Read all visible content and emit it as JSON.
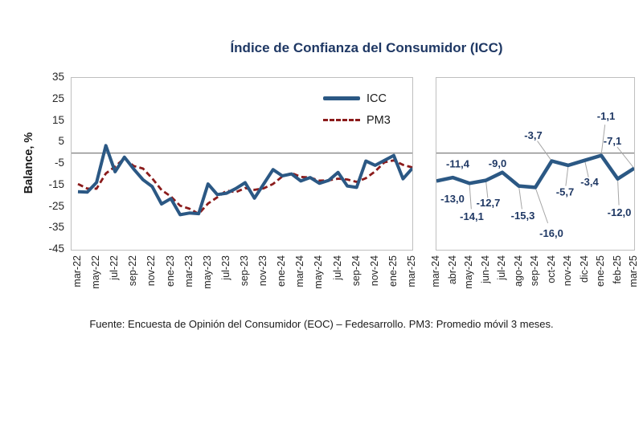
{
  "title": "Índice de Confianza del Consumidor (ICC)",
  "source_note": "Fuente: Encuesta de Opinión del Consumidor (EOC) – Fedesarrollo. PM3: Promedio móvil 3 meses.",
  "legend": {
    "icc_label": "ICC",
    "pm3_label": "PM3"
  },
  "y_axis": {
    "title": "Balance, %",
    "tick_labels": [
      "35",
      "25",
      "15",
      "5",
      "-5",
      "-15",
      "-25",
      "-35",
      "-45"
    ],
    "min": -45,
    "max": 35
  },
  "colors": {
    "icc_line": "#2B5884",
    "pm3_line": "#8B1B1B",
    "title_text": "#1F3864",
    "data_label_text": "#1F3864",
    "zero_line": "#7F7F7F",
    "panel_border": "#BFBFBF",
    "leader_line": "#A6A6A6",
    "axis_text": "#262626"
  },
  "chart_data": [
    {
      "type": "line",
      "name": "icc-vs-pm3-full-series",
      "title": "",
      "ylabel": "Balance, %",
      "ylim": [
        -45,
        35
      ],
      "grid": false,
      "legend_position": "top-right",
      "categories": [
        "mar-22",
        "abr-22",
        "may-22",
        "jun-22",
        "jul-22",
        "ago-22",
        "sep-22",
        "oct-22",
        "nov-22",
        "dic-22",
        "ene-23",
        "feb-23",
        "mar-23",
        "abr-23",
        "may-23",
        "jun-23",
        "jul-23",
        "ago-23",
        "sep-23",
        "oct-23",
        "nov-23",
        "dic-23",
        "ene-24",
        "feb-24",
        "mar-24",
        "abr-24",
        "may-24",
        "jun-24",
        "jul-24",
        "ago-24",
        "sep-24",
        "oct-24",
        "nov-24",
        "dic-24",
        "ene-25",
        "feb-25",
        "mar-25"
      ],
      "x_tick_labels": [
        "mar-22",
        "may-22",
        "jul-22",
        "sep-22",
        "nov-22",
        "ene-23",
        "mar-23",
        "may-23",
        "jul-23",
        "sep-23",
        "nov-23",
        "ene-24",
        "mar-24",
        "may-24",
        "jul-24",
        "sep-24",
        "nov-24",
        "ene-25",
        "mar-25"
      ],
      "series": [
        {
          "name": "ICC",
          "values": [
            -18.0,
            -18.2,
            -13.7,
            3.5,
            -8.7,
            -1.9,
            -7.4,
            -12.4,
            -15.6,
            -23.7,
            -21.2,
            -28.7,
            -27.9,
            -28.2,
            -14.4,
            -19.3,
            -18.7,
            -16.5,
            -13.8,
            -21.0,
            -14.4,
            -7.7,
            -10.6,
            -9.7,
            -13.0,
            -11.4,
            -14.1,
            -12.7,
            -9.0,
            -15.3,
            -16.0,
            -3.7,
            -5.7,
            -3.4,
            -1.1,
            -12.0,
            -7.1
          ]
        },
        {
          "name": "PM3",
          "values": [
            -14.4,
            -16.5,
            -16.6,
            -9.5,
            -6.3,
            -2.4,
            -6.0,
            -7.2,
            -11.8,
            -17.2,
            -20.2,
            -24.5,
            -25.9,
            -28.3,
            -23.5,
            -20.6,
            -17.5,
            -18.2,
            -16.3,
            -17.1,
            -16.4,
            -14.4,
            -10.9,
            -9.3,
            -11.1,
            -11.4,
            -12.8,
            -12.7,
            -11.9,
            -12.3,
            -13.4,
            -11.7,
            -8.5,
            -4.3,
            -3.4,
            -5.5,
            -6.7
          ]
        }
      ]
    },
    {
      "type": "line",
      "name": "icc-last-13-months",
      "title": "",
      "ylim": [
        -45,
        35
      ],
      "grid": false,
      "categories": [
        "mar-24",
        "abr-24",
        "may-24",
        "jun-24",
        "jul-24",
        "ago-24",
        "sep-24",
        "oct-24",
        "nov-24",
        "dic-24",
        "ene-25",
        "feb-25",
        "mar-25"
      ],
      "series": [
        {
          "name": "ICC",
          "values": [
            -13.0,
            -11.4,
            -14.1,
            -12.7,
            -9.0,
            -15.3,
            -16.0,
            -3.7,
            -5.7,
            -3.4,
            -1.1,
            -12.0,
            -7.1
          ]
        }
      ],
      "data_labels": [
        "-13,0",
        "-11,4",
        "-14,1",
        "-12,7",
        "-9,0",
        "-15,3",
        "-16,0",
        "-3,7",
        "-5,7",
        "-3,4",
        "-1,1",
        "-12,0",
        "-7,1"
      ]
    }
  ]
}
